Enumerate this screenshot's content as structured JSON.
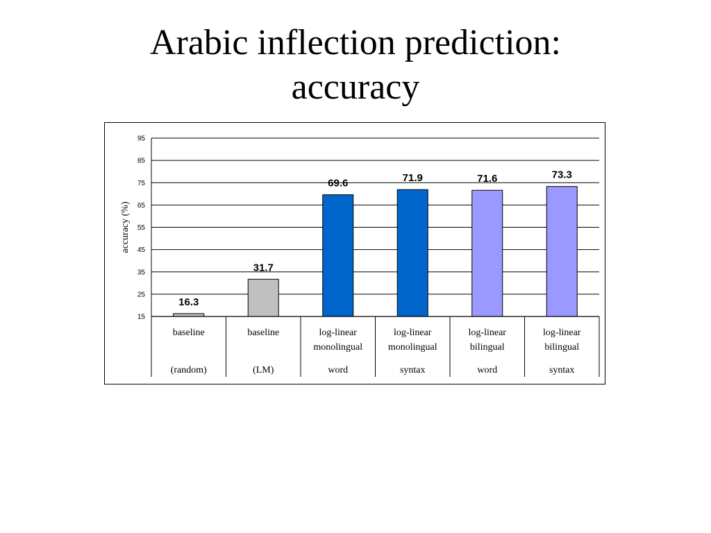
{
  "slide": {
    "title_line1": "Arabic inflection prediction:",
    "title_line2": "accuracy"
  },
  "chart_data": {
    "type": "bar",
    "title": "",
    "xlabel": "",
    "ylabel": "accuracy (%)",
    "ylim": [
      15,
      95
    ],
    "yticks": [
      15,
      25,
      35,
      45,
      55,
      65,
      75,
      85,
      95
    ],
    "grid": true,
    "legend": "none",
    "categories": [
      {
        "lines": [
          "baseline"
        ],
        "sub": "(random)"
      },
      {
        "lines": [
          "baseline"
        ],
        "sub": "(LM)"
      },
      {
        "lines": [
          "log-linear",
          "monolingual"
        ],
        "sub": "word"
      },
      {
        "lines": [
          "log-linear",
          "monolingual"
        ],
        "sub": "syntax"
      },
      {
        "lines": [
          "log-linear",
          "bilingual"
        ],
        "sub": "word"
      },
      {
        "lines": [
          "log-linear",
          "bilingual"
        ],
        "sub": "syntax"
      }
    ],
    "values": [
      16.3,
      31.7,
      69.6,
      71.9,
      71.6,
      73.3
    ],
    "data_labels": [
      "16.3",
      "31.7",
      "69.6",
      "71.9",
      "71.6",
      "73.3"
    ],
    "bar_colors": [
      "#c0c0c0",
      "#c0c0c0",
      "#0066cc",
      "#0066cc",
      "#9999ff",
      "#9999ff"
    ]
  }
}
